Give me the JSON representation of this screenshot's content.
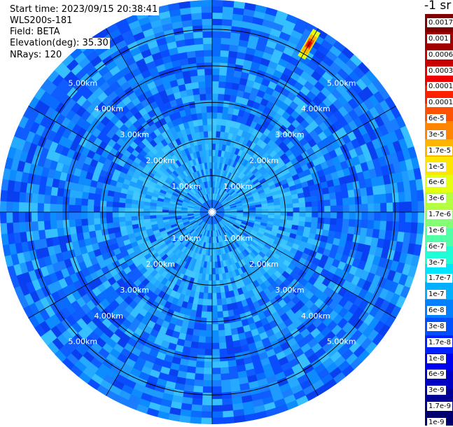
{
  "info": {
    "start_time": "Start time: 2023/09/15 20:38:41",
    "instrument": "WLS200s-181",
    "field": "Field: BETA",
    "elevation": "Elevation(deg): 35.30",
    "nrays": "NRays: 120"
  },
  "colorbar": {
    "unit_label": "-1 sr",
    "labels": [
      "0.0017",
      "0.001",
      "0.0006",
      "0.0003",
      "0.00017",
      "0.0001",
      "6e-5",
      "3e-5",
      "1.7e-5",
      "1e-5",
      "6e-6",
      "3e-6",
      "1.7e-6",
      "1e-6",
      "6e-7",
      "3e-7",
      "1.7e-7",
      "1e-7",
      "6e-8",
      "3e-8",
      "1.7e-8",
      "1e-8",
      "6e-9",
      "3e-9",
      "1.7e-9",
      "1e-9"
    ],
    "colors": [
      "#7f0000",
      "#a00000",
      "#c80000",
      "#ee0000",
      "#ff2000",
      "#ff5200",
      "#ff8400",
      "#ffb500",
      "#ffe600",
      "#e6ff10",
      "#b4ff42",
      "#82ff74",
      "#50ffa6",
      "#1effd8",
      "#00e4ff",
      "#00b0ff",
      "#0080ff",
      "#0050ff",
      "#0020ff",
      "#0000f0",
      "#0000c4",
      "#000096",
      "#000070"
    ]
  },
  "chart_data": {
    "type": "polar-ppi",
    "title": "",
    "field": "BETA",
    "rings_km": [
      1,
      2,
      3,
      4,
      5
    ],
    "ring_labels": [
      "1.00km",
      "2.00km",
      "3.00km",
      "4.00km",
      "5.00km"
    ],
    "spoke_angles_deg": [
      0,
      30,
      60,
      90,
      120,
      150,
      180,
      210,
      240,
      270,
      300,
      330
    ],
    "max_range_km": 5.8,
    "background_field_level": "6e-8",
    "near_field_level": "1.7e-7",
    "hotspot": {
      "azimuth_deg": 30,
      "range_km": 5.3,
      "level": "1.7e-5"
    }
  }
}
